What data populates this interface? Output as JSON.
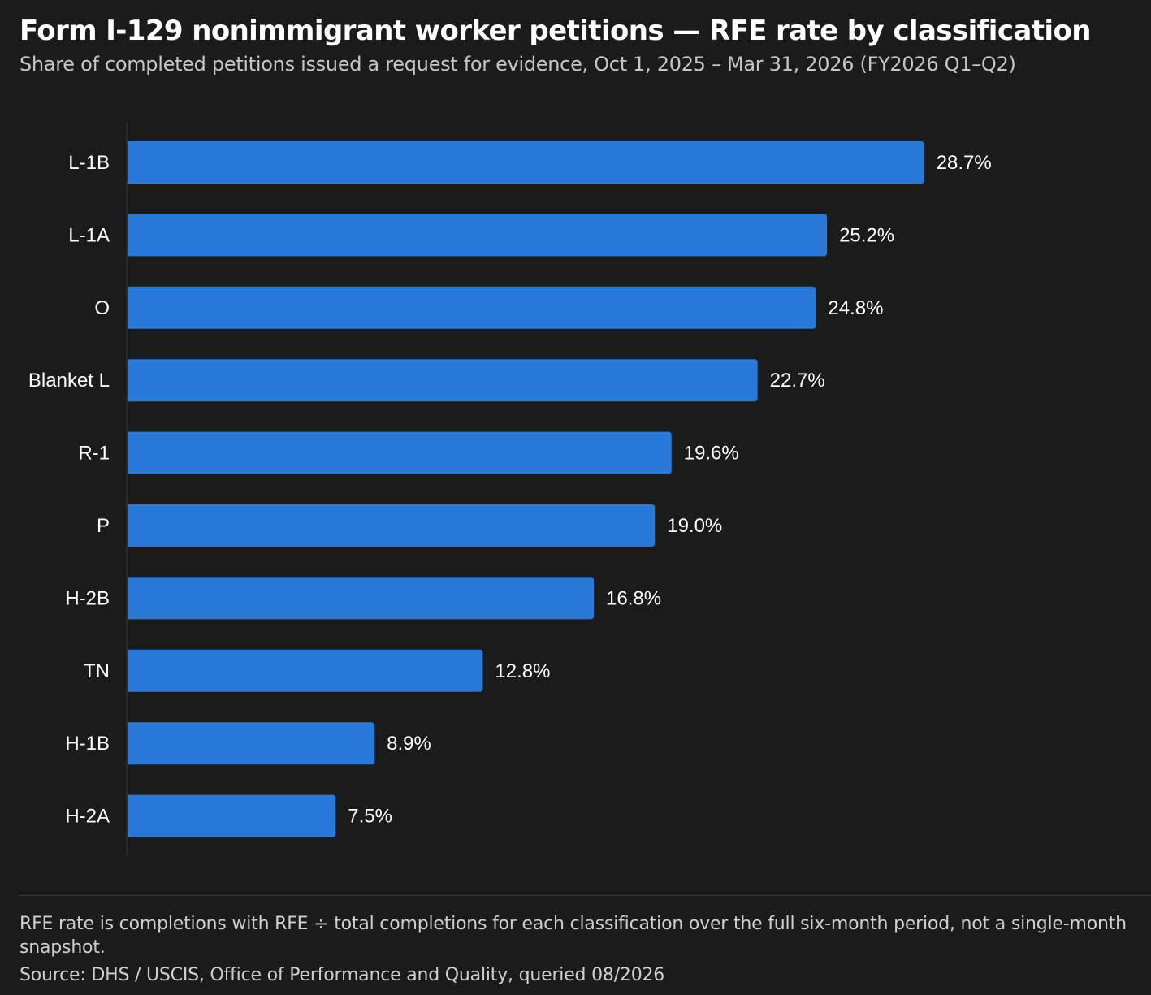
{
  "header": {
    "title": "Form I-129 nonimmigrant worker petitions — RFE rate by classification",
    "subtitle": "Share of completed petitions issued a request for evidence, Oct 1, 2025 – Mar 31, 2026 (FY2026 Q1–Q2)"
  },
  "chart_data": {
    "type": "bar",
    "orientation": "horizontal",
    "title": "Form I-129 nonimmigrant worker petitions — RFE rate by classification",
    "subtitle": "Share of completed petitions issued a request for evidence, Oct 1, 2025 – Mar 31, 2026 (FY2026 Q1–Q2)",
    "categories": [
      "L-1B",
      "L-1A",
      "O",
      "Blanket L",
      "R-1",
      "P",
      "H-2B",
      "TN",
      "H-1B",
      "H-2A"
    ],
    "values": [
      28.7,
      25.2,
      24.8,
      22.7,
      19.6,
      19.0,
      16.8,
      12.8,
      8.9,
      7.5
    ],
    "labels": [
      "28.7%",
      "25.2%",
      "24.8%",
      "22.7%",
      "19.6%",
      "19.0%",
      "16.8%",
      "12.8%",
      "8.9%",
      "7.5%"
    ],
    "unit": "%",
    "xlabel": "",
    "ylabel": "",
    "grid": false,
    "legend": "none",
    "bar_color": "#2979d9",
    "axis_color": "#3a3a3a"
  },
  "footer": {
    "note": "RFE rate is completions with RFE ÷ total completions for each classification over the full six-month period, not a single-month snapshot.",
    "source": "Source: DHS / USCIS, Office of Performance and Quality, queried 08/2026"
  }
}
